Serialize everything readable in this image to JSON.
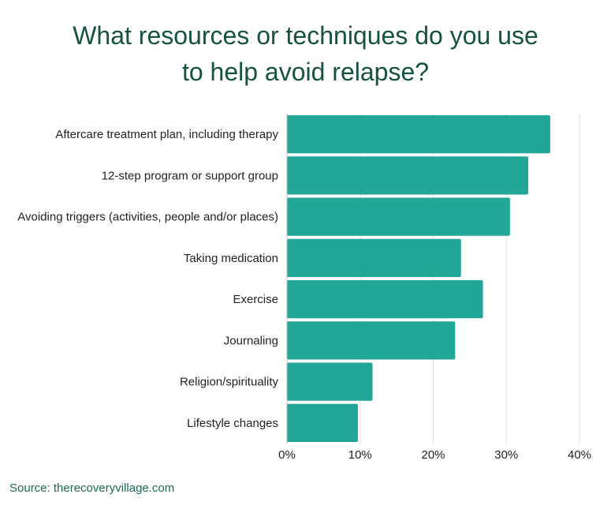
{
  "title_lines": [
    "What resources or techniques do you use",
    "to help avoid relapse?"
  ],
  "source": "Source: therecoveryvillage.com",
  "colors": {
    "bar": "#21a697",
    "title": "#15523f",
    "grid": "#e2e2e2",
    "source": "#1c6b4f"
  },
  "chart_data": {
    "type": "bar",
    "orientation": "horizontal",
    "title": "What resources or techniques do you use to help avoid relapse?",
    "categories": [
      "Aftercare treatment plan, including therapy",
      "12-step program or support group",
      "Avoiding triggers (activities, people and/or places)",
      "Taking medication",
      "Exercise",
      "Journaling",
      "Religion/spirituality",
      "Lifestyle changes"
    ],
    "values": [
      36,
      33,
      30.5,
      23.8,
      26.8,
      23,
      11.7,
      9.7
    ],
    "xlim": [
      0,
      40
    ],
    "ticks": [
      "0%",
      "10%",
      "20%",
      "30%",
      "40%"
    ],
    "grid": true,
    "xlabel": "",
    "ylabel": ""
  }
}
